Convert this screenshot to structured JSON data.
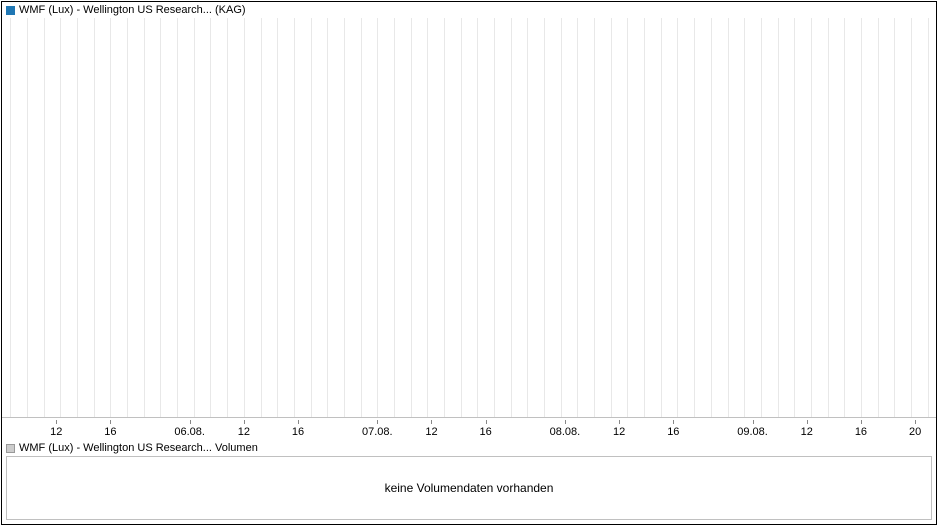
{
  "chart": {
    "type": "line",
    "price": {
      "legend_color": "#1f77b4",
      "title": "WMF (Lux) - Wellington US Research... (KAG)"
    },
    "volume": {
      "legend_color": "#cccccc",
      "title": "WMF (Lux) - Wellington US Research... Volumen",
      "no_data_message": "keine Volumendaten vorhanden"
    },
    "x_axis": {
      "labels": [
        "12",
        "16",
        "06.08.",
        "12",
        "16",
        "07.08.",
        "12",
        "16",
        "08.08.",
        "12",
        "16",
        "09.08.",
        "12",
        "16",
        "20"
      ],
      "label_positions_pct": [
        6.5,
        13.0,
        22.5,
        29.0,
        35.5,
        45.0,
        51.5,
        58.0,
        67.5,
        74.0,
        80.5,
        90.0,
        96.5,
        103.0,
        109.5
      ]
    },
    "grid": {
      "line_color": "#e8e8e8",
      "count": 56
    },
    "border_color": "#000000",
    "background_color": "#ffffff",
    "font_size_label": 11,
    "font_size_message": 12
  }
}
